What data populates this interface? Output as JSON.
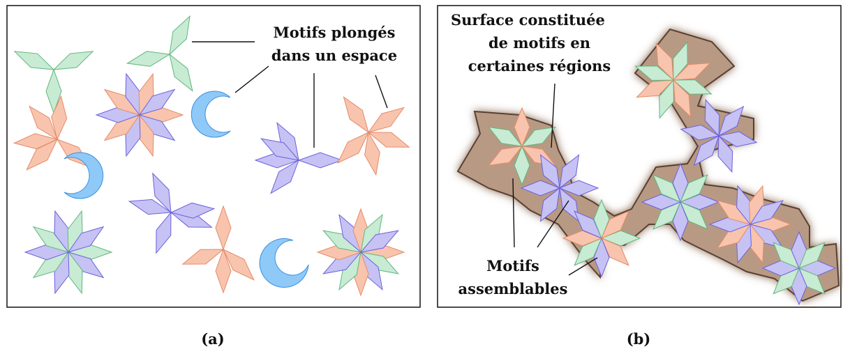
{
  "panel_a": {
    "annotation": [
      "Motifs plongés",
      "dans un espace"
    ],
    "caption": "(a)"
  },
  "panel_b": {
    "title": [
      "Surface constituée",
      "de motifs en",
      "certaines régions"
    ],
    "annotation": [
      "Motifs",
      "assemblables"
    ],
    "caption": "(b)"
  }
}
